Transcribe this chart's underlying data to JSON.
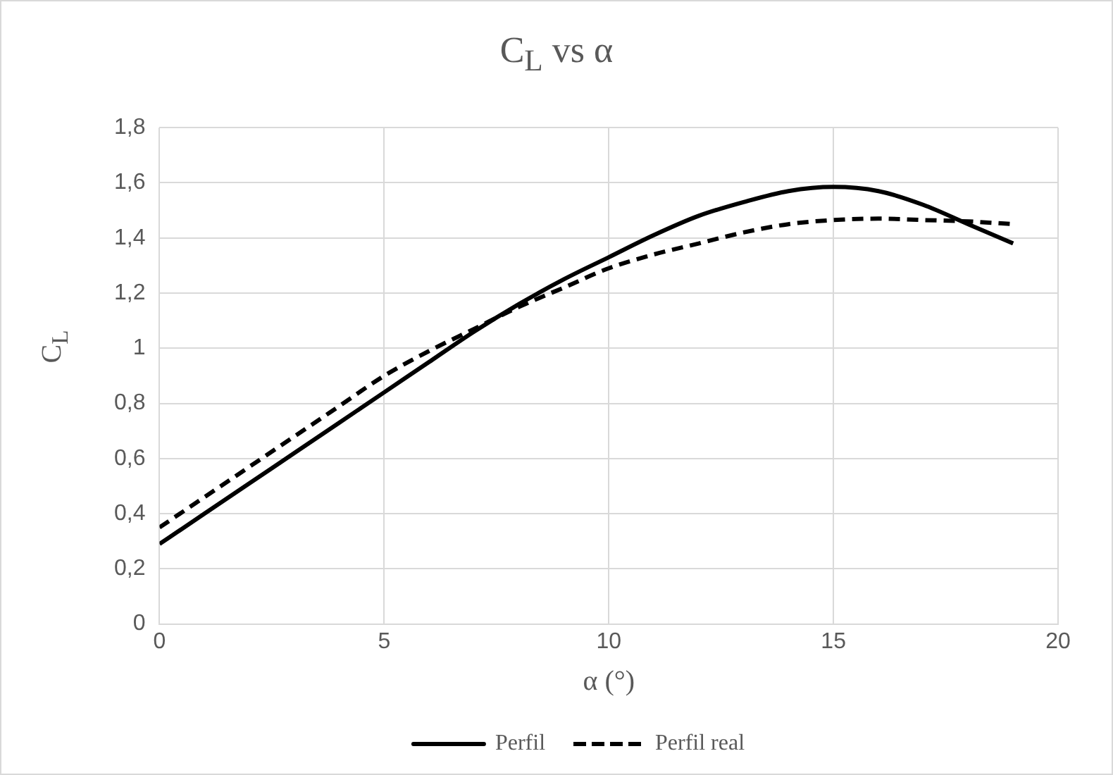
{
  "chart_data": {
    "type": "line",
    "title": "C$_{L}$ vs α",
    "xlabel": "α (°)",
    "ylabel": "C$_{L}$",
    "x": [
      0,
      1,
      2,
      3,
      4,
      5,
      6,
      7,
      8,
      9,
      10,
      11,
      12,
      13,
      14,
      15,
      16,
      17,
      18,
      19
    ],
    "series": [
      {
        "name": "Perfil",
        "color": "#000000",
        "line_style": "solid",
        "values": [
          0.29,
          0.4,
          0.51,
          0.62,
          0.73,
          0.84,
          0.95,
          1.06,
          1.16,
          1.25,
          1.33,
          1.41,
          1.48,
          1.53,
          1.57,
          1.585,
          1.57,
          1.52,
          1.45,
          1.38
        ]
      },
      {
        "name": "Perfil real",
        "color": "#000000",
        "line_style": "dashed",
        "values": [
          0.35,
          0.46,
          0.57,
          0.68,
          0.79,
          0.9,
          0.99,
          1.07,
          1.15,
          1.22,
          1.29,
          1.34,
          1.38,
          1.42,
          1.45,
          1.465,
          1.47,
          1.465,
          1.46,
          1.45
        ]
      }
    ],
    "xlim": [
      0,
      20
    ],
    "xticks": [
      0,
      5,
      10,
      15,
      20
    ],
    "ylim": [
      0,
      1.8
    ],
    "yticks": [
      0,
      {
        "value": 0.2,
        "label": "0,2"
      },
      {
        "value": 0.4,
        "label": "0,4"
      },
      {
        "value": 0.6,
        "label": "0,6"
      },
      {
        "value": 0.8,
        "label": "0,8"
      },
      1,
      {
        "value": 1.2,
        "label": "1,2"
      },
      {
        "value": 1.4,
        "label": "1,4"
      },
      {
        "value": 1.6,
        "label": "1,6"
      },
      {
        "value": 1.8,
        "label": "1,8"
      }
    ],
    "grid": true,
    "legend": "bottom",
    "marker": "none"
  }
}
